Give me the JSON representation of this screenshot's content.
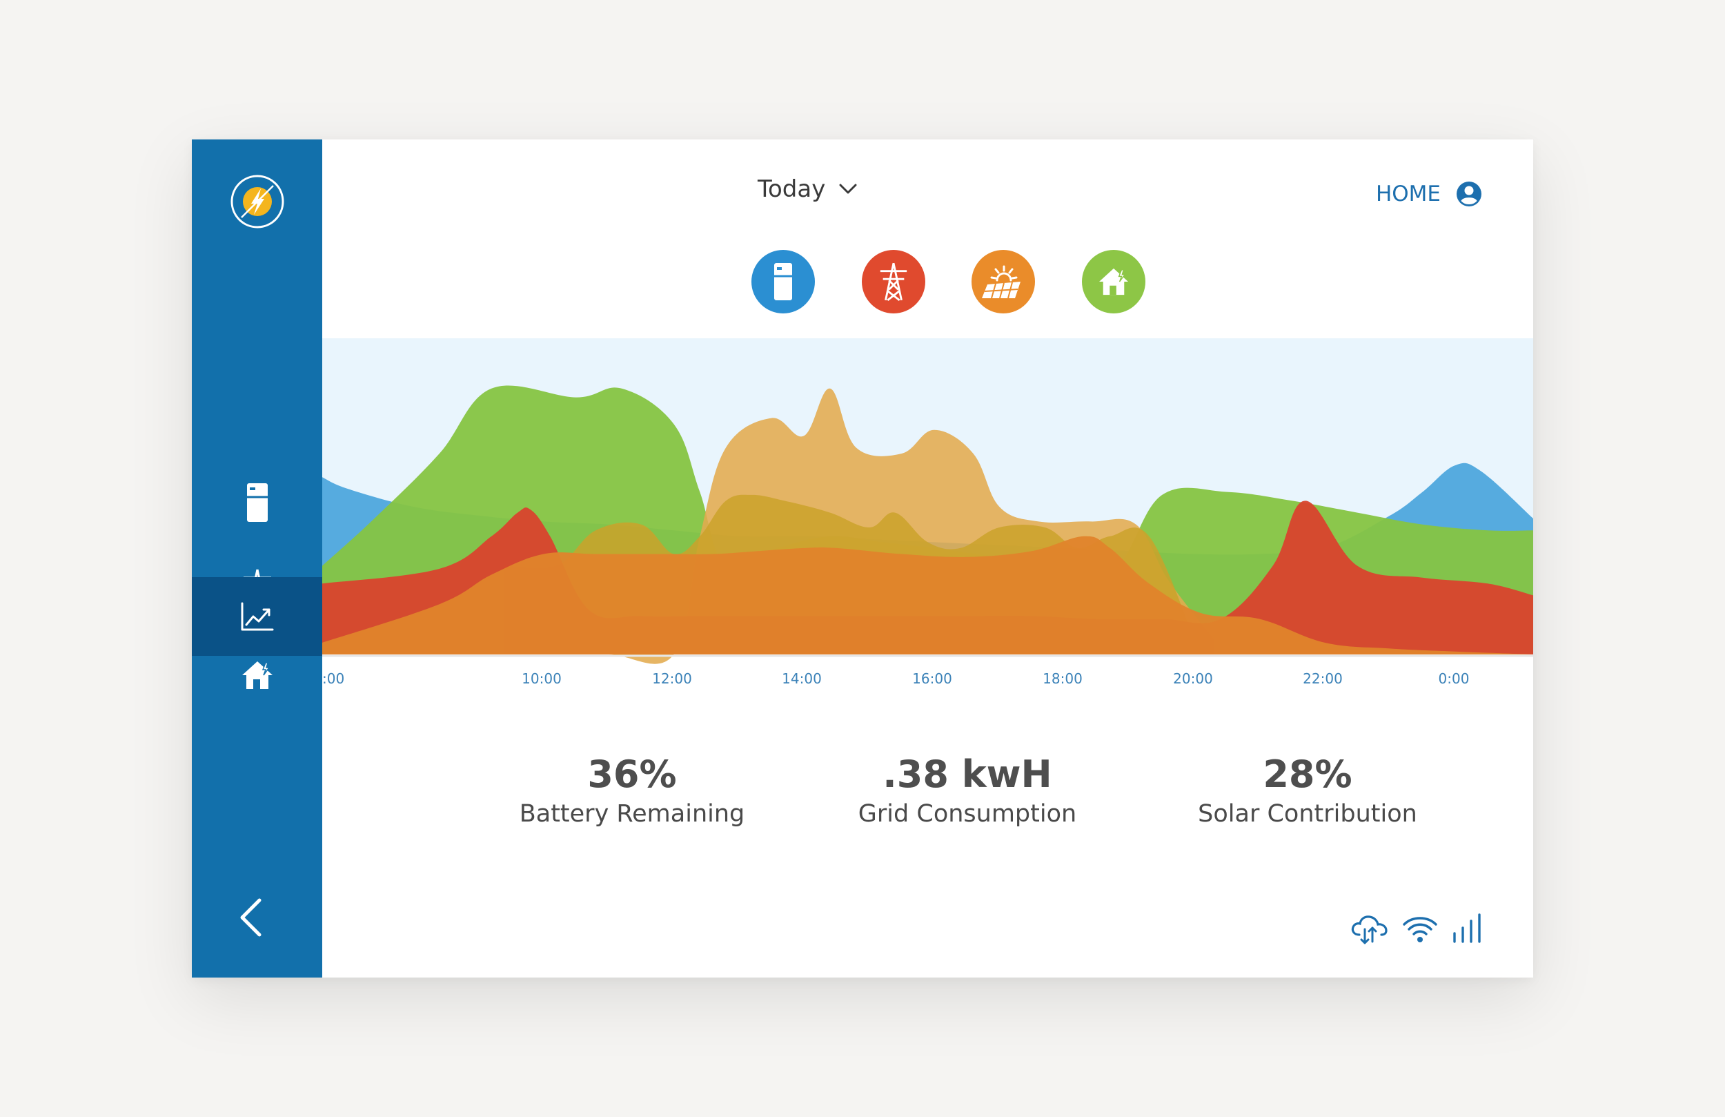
{
  "header": {
    "period_label": "Today",
    "account_label": "HOME"
  },
  "sidebar": {
    "items": [
      {
        "name": "battery"
      },
      {
        "name": "grid"
      },
      {
        "name": "home"
      },
      {
        "name": "trend",
        "active": true
      }
    ]
  },
  "filters": [
    {
      "name": "battery",
      "color": "#2b8fd2"
    },
    {
      "name": "grid",
      "color": "#e04a2e"
    },
    {
      "name": "solar",
      "color": "#ea8c2a"
    },
    {
      "name": "home",
      "color": "#8dc646"
    }
  ],
  "chart_data": {
    "type": "area",
    "x_ticks": [
      ":00",
      "10:00",
      "12:00",
      "14:00",
      "16:00",
      "18:00",
      "20:00",
      "22:00",
      "0:00"
    ],
    "series": [
      {
        "color": "#4ea7dd",
        "x": [
          6.6,
          7,
          8,
          9,
          10,
          11,
          12,
          13,
          14,
          15,
          16,
          17,
          18,
          19,
          20,
          21,
          22,
          23,
          23.5,
          24,
          24.4,
          25.2
        ],
        "values": [
          60,
          56,
          50,
          47,
          45,
          44,
          42,
          40,
          40,
          39,
          38,
          37,
          36,
          35,
          34,
          34,
          36,
          47,
          55,
          64,
          62,
          46
        ]
      },
      {
        "color": "#86c442",
        "x": [
          6.6,
          7.4,
          8.4,
          9.2,
          10.5,
          11.2,
          12,
          12.4,
          12.8,
          13.6,
          14.4,
          15.2,
          16,
          17,
          18,
          18.8,
          19.5,
          20.5,
          21.5,
          22.5,
          23.5,
          24.5,
          25.2
        ],
        "values": [
          30,
          46,
          68,
          90,
          87,
          90,
          78,
          55,
          30,
          36,
          40,
          38,
          36,
          33,
          31,
          30,
          54,
          55,
          52,
          48,
          44,
          42,
          42
        ]
      },
      {
        "color": "#e3ab4e",
        "x": [
          10,
          11,
          12,
          12.4,
          12.8,
          13.5,
          14,
          14.4,
          14.8,
          15.5,
          16,
          16.6,
          17,
          17.6,
          18.4,
          19.1,
          19.6,
          20.3
        ],
        "values": [
          0,
          0,
          0,
          40,
          70,
          80,
          74,
          90,
          70,
          68,
          76,
          68,
          50,
          45,
          45,
          44,
          25,
          5
        ]
      },
      {
        "color": "#cba22a",
        "x": [
          9.4,
          10.2,
          10.8,
          11.5,
          12,
          12.4,
          12.8,
          13.2,
          13.7,
          14.4,
          15,
          15.4,
          15.9,
          16.4,
          17,
          17.7,
          18.2,
          18.7,
          19.3,
          20
        ],
        "values": [
          30,
          30,
          42,
          44,
          34,
          40,
          52,
          54,
          52,
          48,
          43,
          48,
          38,
          36,
          43,
          43,
          36,
          40,
          40,
          5
        ]
      },
      {
        "color": "#d9432d",
        "x": [
          6.6,
          8.4,
          9.2,
          9.6,
          9.8,
          10.1,
          10.7,
          11.5,
          12.5,
          13.5,
          14.5,
          15.5,
          16.5,
          17.5,
          18.5,
          19.5,
          20.4,
          21.2,
          21.7,
          22.5,
          23.5,
          24.5,
          25.2
        ],
        "values": [
          24,
          29,
          40,
          48,
          49,
          40,
          15,
          13,
          13,
          13,
          13,
          13,
          13,
          13,
          12,
          12,
          12,
          30,
          52,
          30,
          26,
          24,
          20
        ]
      },
      {
        "color": "#e0842b",
        "x": [
          6.6,
          8.4,
          9.2,
          10,
          10.8,
          11.8,
          12.6,
          13.3,
          14,
          14.5,
          15.5,
          16.5,
          17.5,
          18.3,
          18.7,
          19.3,
          20.1,
          21,
          22,
          23,
          24,
          25.2
        ],
        "values": [
          4,
          17,
          27,
          34,
          34,
          34,
          34,
          35,
          36,
          36,
          34,
          33,
          35,
          40,
          36,
          24,
          14,
          12,
          4,
          2,
          1,
          0
        ]
      }
    ]
  },
  "stats": [
    {
      "value": "36%",
      "label": "Battery Remaining"
    },
    {
      "value": ".38 kwH",
      "label": "Grid Consumption"
    },
    {
      "value": "28%",
      "label": "Solar Contribution"
    }
  ],
  "status_icons": [
    "cloud-sync-icon",
    "wifi-icon",
    "signal-icon"
  ]
}
